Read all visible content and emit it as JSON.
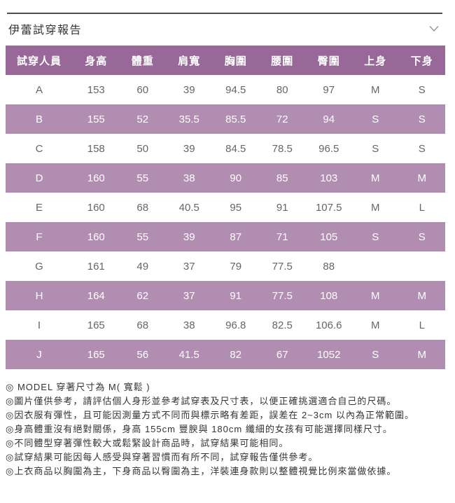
{
  "header": {
    "title": "伊蕾試穿報告",
    "collapse_icon": "chevron-down"
  },
  "table": {
    "columns": [
      "試穿人員",
      "身高",
      "體重",
      "肩寬",
      "胸圍",
      "腰圍",
      "臀圍",
      "上身",
      "下身"
    ],
    "rows": [
      {
        "id": "A",
        "values": [
          "153",
          "60",
          "39",
          "94.5",
          "80",
          "97",
          "M",
          "S"
        ]
      },
      {
        "id": "B",
        "values": [
          "155",
          "52",
          "35.5",
          "85.5",
          "72",
          "94",
          "S",
          "S"
        ]
      },
      {
        "id": "C",
        "values": [
          "158",
          "50",
          "39",
          "84.5",
          "78.5",
          "96.5",
          "S",
          "S"
        ]
      },
      {
        "id": "D",
        "values": [
          "160",
          "55",
          "38",
          "90",
          "85",
          "103",
          "M",
          "M"
        ]
      },
      {
        "id": "E",
        "values": [
          "160",
          "68",
          "40.5",
          "95",
          "91",
          "107.5",
          "M",
          "L"
        ]
      },
      {
        "id": "F",
        "values": [
          "160",
          "55",
          "39",
          "87",
          "71",
          "105",
          "S",
          "S"
        ]
      },
      {
        "id": "G",
        "values": [
          "161",
          "49",
          "37",
          "79",
          "77.5",
          "88",
          "",
          ""
        ]
      },
      {
        "id": "H",
        "values": [
          "164",
          "62",
          "37",
          "91",
          "77.5",
          "108",
          "M",
          "M"
        ]
      },
      {
        "id": "I",
        "values": [
          "165",
          "68",
          "38",
          "96.8",
          "82.5",
          "106.6",
          "M",
          "L"
        ]
      },
      {
        "id": "J",
        "values": [
          "165",
          "56",
          "41.5",
          "82",
          "67",
          "1052",
          "S",
          "M"
        ]
      }
    ]
  },
  "notes": [
    "◎ MODEL 穿著尺寸為 M( 寬鬆 )",
    "◎圖片僅供參考，請評估個人身形並參考試穿表及尺寸表，以便正確挑選適合自己的尺碼。",
    "◎因衣服有彈性，且可能因測量方式不同而與標示略有差距，誤差在 2~3cm 以內為正常範圍。",
    "◎身高體重沒有絕對關係，身高 155cm 豐腴與 180cm 纖細的女孩有可能選擇同樣尺寸。",
    "◎不同體型穿著彈性較大或鬆緊設計商品時，試穿結果可能相同。",
    "◎試穿結果可能因每人感受與穿著習慣而有所不同，試穿報告僅供參考。",
    "◎上衣商品以胸圍為主，下身商品以臀圍為主，洋裝連身款則以整體視覺比例來當做依據。"
  ],
  "colors": {
    "header_bg": "#976898",
    "stripe_bg": "#b18db1",
    "data_text": "#666666",
    "rule": "#4f4f4f",
    "chevron": "#999999"
  }
}
